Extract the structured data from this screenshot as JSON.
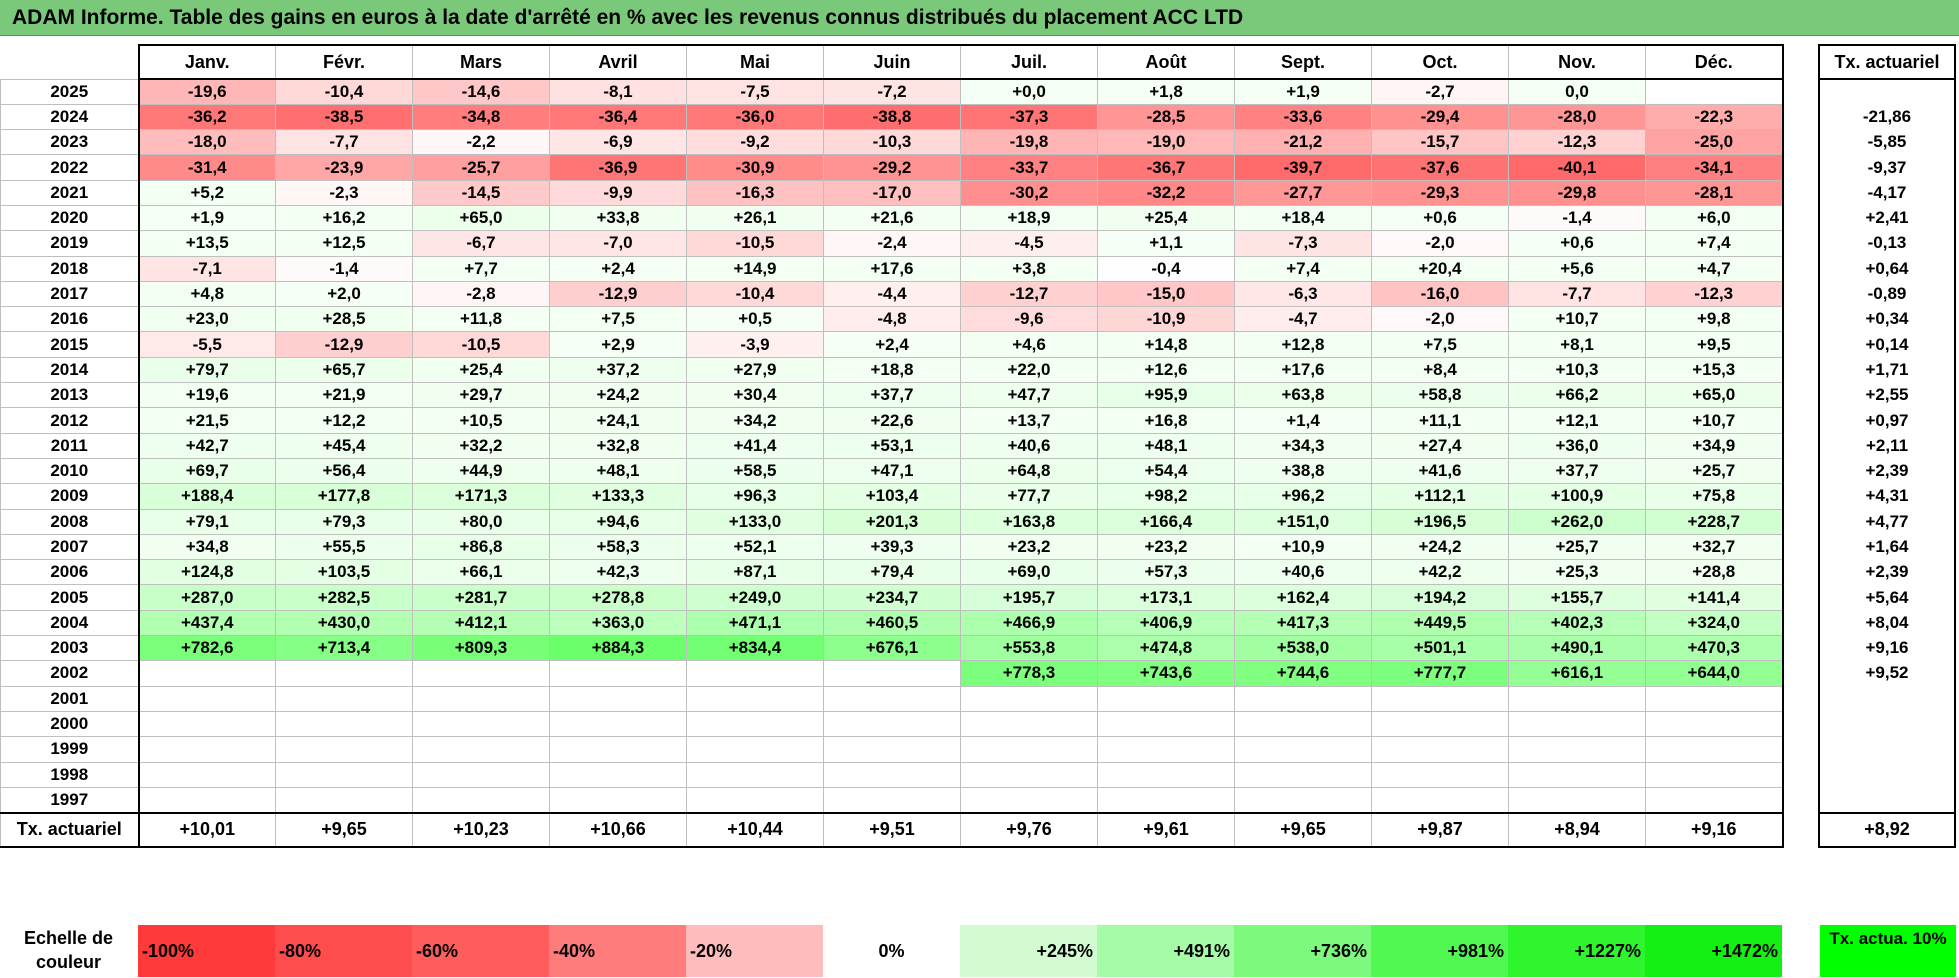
{
  "title": "ADAM Informe. Table des gains en euros à la date d'arrêté en % avec les revenus connus distribués du placement ACC LTD",
  "months": [
    "Janv.",
    "Févr.",
    "Mars",
    "Avril",
    "Mai",
    "Juin",
    "Juil.",
    "Août",
    "Sept.",
    "Oct.",
    "Nov.",
    "Déc."
  ],
  "actuarial_header": "Tx. actuariel",
  "rows": [
    {
      "year": "2025",
      "values": [
        "-19,6",
        "-10,4",
        "-14,6",
        "-8,1",
        "-7,5",
        "-7,2",
        "+0,0",
        "+1,8",
        "+1,9",
        "-2,7",
        "0,0",
        ""
      ],
      "actuarial": ""
    },
    {
      "year": "2024",
      "values": [
        "-36,2",
        "-38,5",
        "-34,8",
        "-36,4",
        "-36,0",
        "-38,8",
        "-37,3",
        "-28,5",
        "-33,6",
        "-29,4",
        "-28,0",
        "-22,3"
      ],
      "actuarial": "-21,86"
    },
    {
      "year": "2023",
      "values": [
        "-18,0",
        "-7,7",
        "-2,2",
        "-6,9",
        "-9,2",
        "-10,3",
        "-19,8",
        "-19,0",
        "-21,2",
        "-15,7",
        "-12,3",
        "-25,0"
      ],
      "actuarial": "-5,85"
    },
    {
      "year": "2022",
      "values": [
        "-31,4",
        "-23,9",
        "-25,7",
        "-36,9",
        "-30,9",
        "-29,2",
        "-33,7",
        "-36,7",
        "-39,7",
        "-37,6",
        "-40,1",
        "-34,1"
      ],
      "actuarial": "-9,37"
    },
    {
      "year": "2021",
      "values": [
        "+5,2",
        "-2,3",
        "-14,5",
        "-9,9",
        "-16,3",
        "-17,0",
        "-30,2",
        "-32,2",
        "-27,7",
        "-29,3",
        "-29,8",
        "-28,1"
      ],
      "actuarial": "-4,17"
    },
    {
      "year": "2020",
      "values": [
        "+1,9",
        "+16,2",
        "+65,0",
        "+33,8",
        "+26,1",
        "+21,6",
        "+18,9",
        "+25,4",
        "+18,4",
        "+0,6",
        "-1,4",
        "+6,0"
      ],
      "actuarial": "+2,41"
    },
    {
      "year": "2019",
      "values": [
        "+13,5",
        "+12,5",
        "-6,7",
        "-7,0",
        "-10,5",
        "-2,4",
        "-4,5",
        "+1,1",
        "-7,3",
        "-2,0",
        "+0,6",
        "+7,4"
      ],
      "actuarial": "-0,13"
    },
    {
      "year": "2018",
      "values": [
        "-7,1",
        "-1,4",
        "+7,7",
        "+2,4",
        "+14,9",
        "+17,6",
        "+3,8",
        "-0,4",
        "+7,4",
        "+20,4",
        "+5,6",
        "+4,7"
      ],
      "actuarial": "+0,64"
    },
    {
      "year": "2017",
      "values": [
        "+4,8",
        "+2,0",
        "-2,8",
        "-12,9",
        "-10,4",
        "-4,4",
        "-12,7",
        "-15,0",
        "-6,3",
        "-16,0",
        "-7,7",
        "-12,3"
      ],
      "actuarial": "-0,89"
    },
    {
      "year": "2016",
      "values": [
        "+23,0",
        "+28,5",
        "+11,8",
        "+7,5",
        "+0,5",
        "-4,8",
        "-9,6",
        "-10,9",
        "-4,7",
        "-2,0",
        "+10,7",
        "+9,8"
      ],
      "actuarial": "+0,34"
    },
    {
      "year": "2015",
      "values": [
        "-5,5",
        "-12,9",
        "-10,5",
        "+2,9",
        "-3,9",
        "+2,4",
        "+4,6",
        "+14,8",
        "+12,8",
        "+7,5",
        "+8,1",
        "+9,5"
      ],
      "actuarial": "+0,14"
    },
    {
      "year": "2014",
      "values": [
        "+79,7",
        "+65,7",
        "+25,4",
        "+37,2",
        "+27,9",
        "+18,8",
        "+22,0",
        "+12,6",
        "+17,6",
        "+8,4",
        "+10,3",
        "+15,3"
      ],
      "actuarial": "+1,71"
    },
    {
      "year": "2013",
      "values": [
        "+19,6",
        "+21,9",
        "+29,7",
        "+24,2",
        "+30,4",
        "+37,7",
        "+47,7",
        "+95,9",
        "+63,8",
        "+58,8",
        "+66,2",
        "+65,0"
      ],
      "actuarial": "+2,55"
    },
    {
      "year": "2012",
      "values": [
        "+21,5",
        "+12,2",
        "+10,5",
        "+24,1",
        "+34,2",
        "+22,6",
        "+13,7",
        "+16,8",
        "+1,4",
        "+11,1",
        "+12,1",
        "+10,7"
      ],
      "actuarial": "+0,97"
    },
    {
      "year": "2011",
      "values": [
        "+42,7",
        "+45,4",
        "+32,2",
        "+32,8",
        "+41,4",
        "+53,1",
        "+40,6",
        "+48,1",
        "+34,3",
        "+27,4",
        "+36,0",
        "+34,9"
      ],
      "actuarial": "+2,11"
    },
    {
      "year": "2010",
      "values": [
        "+69,7",
        "+56,4",
        "+44,9",
        "+48,1",
        "+58,5",
        "+47,1",
        "+64,8",
        "+54,4",
        "+38,8",
        "+41,6",
        "+37,7",
        "+25,7"
      ],
      "actuarial": "+2,39"
    },
    {
      "year": "2009",
      "values": [
        "+188,4",
        "+177,8",
        "+171,3",
        "+133,3",
        "+96,3",
        "+103,4",
        "+77,7",
        "+98,2",
        "+96,2",
        "+112,1",
        "+100,9",
        "+75,8"
      ],
      "actuarial": "+4,31"
    },
    {
      "year": "2008",
      "values": [
        "+79,1",
        "+79,3",
        "+80,0",
        "+94,6",
        "+133,0",
        "+201,3",
        "+163,8",
        "+166,4",
        "+151,0",
        "+196,5",
        "+262,0",
        "+228,7"
      ],
      "actuarial": "+4,77"
    },
    {
      "year": "2007",
      "values": [
        "+34,8",
        "+55,5",
        "+86,8",
        "+58,3",
        "+52,1",
        "+39,3",
        "+23,2",
        "+23,2",
        "+10,9",
        "+24,2",
        "+25,7",
        "+32,7"
      ],
      "actuarial": "+1,64"
    },
    {
      "year": "2006",
      "values": [
        "+124,8",
        "+103,5",
        "+66,1",
        "+42,3",
        "+87,1",
        "+79,4",
        "+69,0",
        "+57,3",
        "+40,6",
        "+42,2",
        "+25,3",
        "+28,8"
      ],
      "actuarial": "+2,39"
    },
    {
      "year": "2005",
      "values": [
        "+287,0",
        "+282,5",
        "+281,7",
        "+278,8",
        "+249,0",
        "+234,7",
        "+195,7",
        "+173,1",
        "+162,4",
        "+194,2",
        "+155,7",
        "+141,4"
      ],
      "actuarial": "+5,64"
    },
    {
      "year": "2004",
      "values": [
        "+437,4",
        "+430,0",
        "+412,1",
        "+363,0",
        "+471,1",
        "+460,5",
        "+466,9",
        "+406,9",
        "+417,3",
        "+449,5",
        "+402,3",
        "+324,0"
      ],
      "actuarial": "+8,04"
    },
    {
      "year": "2003",
      "values": [
        "+782,6",
        "+713,4",
        "+809,3",
        "+884,3",
        "+834,4",
        "+676,1",
        "+553,8",
        "+474,8",
        "+538,0",
        "+501,1",
        "+490,1",
        "+470,3"
      ],
      "actuarial": "+9,16"
    },
    {
      "year": "2002",
      "values": [
        "",
        "",
        "",
        "",
        "",
        "",
        "+778,3",
        "+743,6",
        "+744,6",
        "+777,7",
        "+616,1",
        "+644,0"
      ],
      "actuarial": "+9,52"
    },
    {
      "year": "2001",
      "values": [
        "",
        "",
        "",
        "",
        "",
        "",
        "",
        "",
        "",
        "",
        "",
        ""
      ],
      "actuarial": ""
    },
    {
      "year": "2000",
      "values": [
        "",
        "",
        "",
        "",
        "",
        "",
        "",
        "",
        "",
        "",
        "",
        ""
      ],
      "actuarial": ""
    },
    {
      "year": "1999",
      "values": [
        "",
        "",
        "",
        "",
        "",
        "",
        "",
        "",
        "",
        "",
        "",
        ""
      ],
      "actuarial": ""
    },
    {
      "year": "1998",
      "values": [
        "",
        "",
        "",
        "",
        "",
        "",
        "",
        "",
        "",
        "",
        "",
        ""
      ],
      "actuarial": ""
    },
    {
      "year": "1997",
      "values": [
        "",
        "",
        "",
        "",
        "",
        "",
        "",
        "",
        "",
        "",
        "",
        ""
      ],
      "actuarial": ""
    }
  ],
  "totals": {
    "label": "Tx. actuariel",
    "values": [
      "+10,01",
      "+9,65",
      "+10,23",
      "+10,66",
      "+10,44",
      "+9,51",
      "+9,76",
      "+9,61",
      "+9,65",
      "+9,87",
      "+8,94",
      "+9,16"
    ],
    "actuarial": "+8,92"
  },
  "legend": {
    "label": "Echelle de couleur",
    "items": [
      {
        "text": "-100%",
        "color": "#ff3a3a",
        "align": "left"
      },
      {
        "text": "-80%",
        "color": "#ff4d4d",
        "align": "left"
      },
      {
        "text": "-60%",
        "color": "#ff5c5c",
        "align": "left"
      },
      {
        "text": "-40%",
        "color": "#ff7c7c",
        "align": "left"
      },
      {
        "text": "-20%",
        "color": "#ffbcbc",
        "align": "left"
      },
      {
        "text": "0%",
        "color": "#ffffff",
        "align": "center"
      },
      {
        "text": "+245%",
        "color": "#d2fbd2",
        "align": "right"
      },
      {
        "text": "+491%",
        "color": "#a6fba6",
        "align": "right"
      },
      {
        "text": "+736%",
        "color": "#7dfa7d",
        "align": "right"
      },
      {
        "text": "+981%",
        "color": "#52f852",
        "align": "right"
      },
      {
        "text": "+1227%",
        "color": "#2ef52e",
        "align": "right"
      },
      {
        "text": "+1472%",
        "color": "#14f014",
        "align": "right"
      }
    ],
    "final": {
      "text": "Tx. actua. 10%",
      "color": "#00ff00"
    }
  }
}
